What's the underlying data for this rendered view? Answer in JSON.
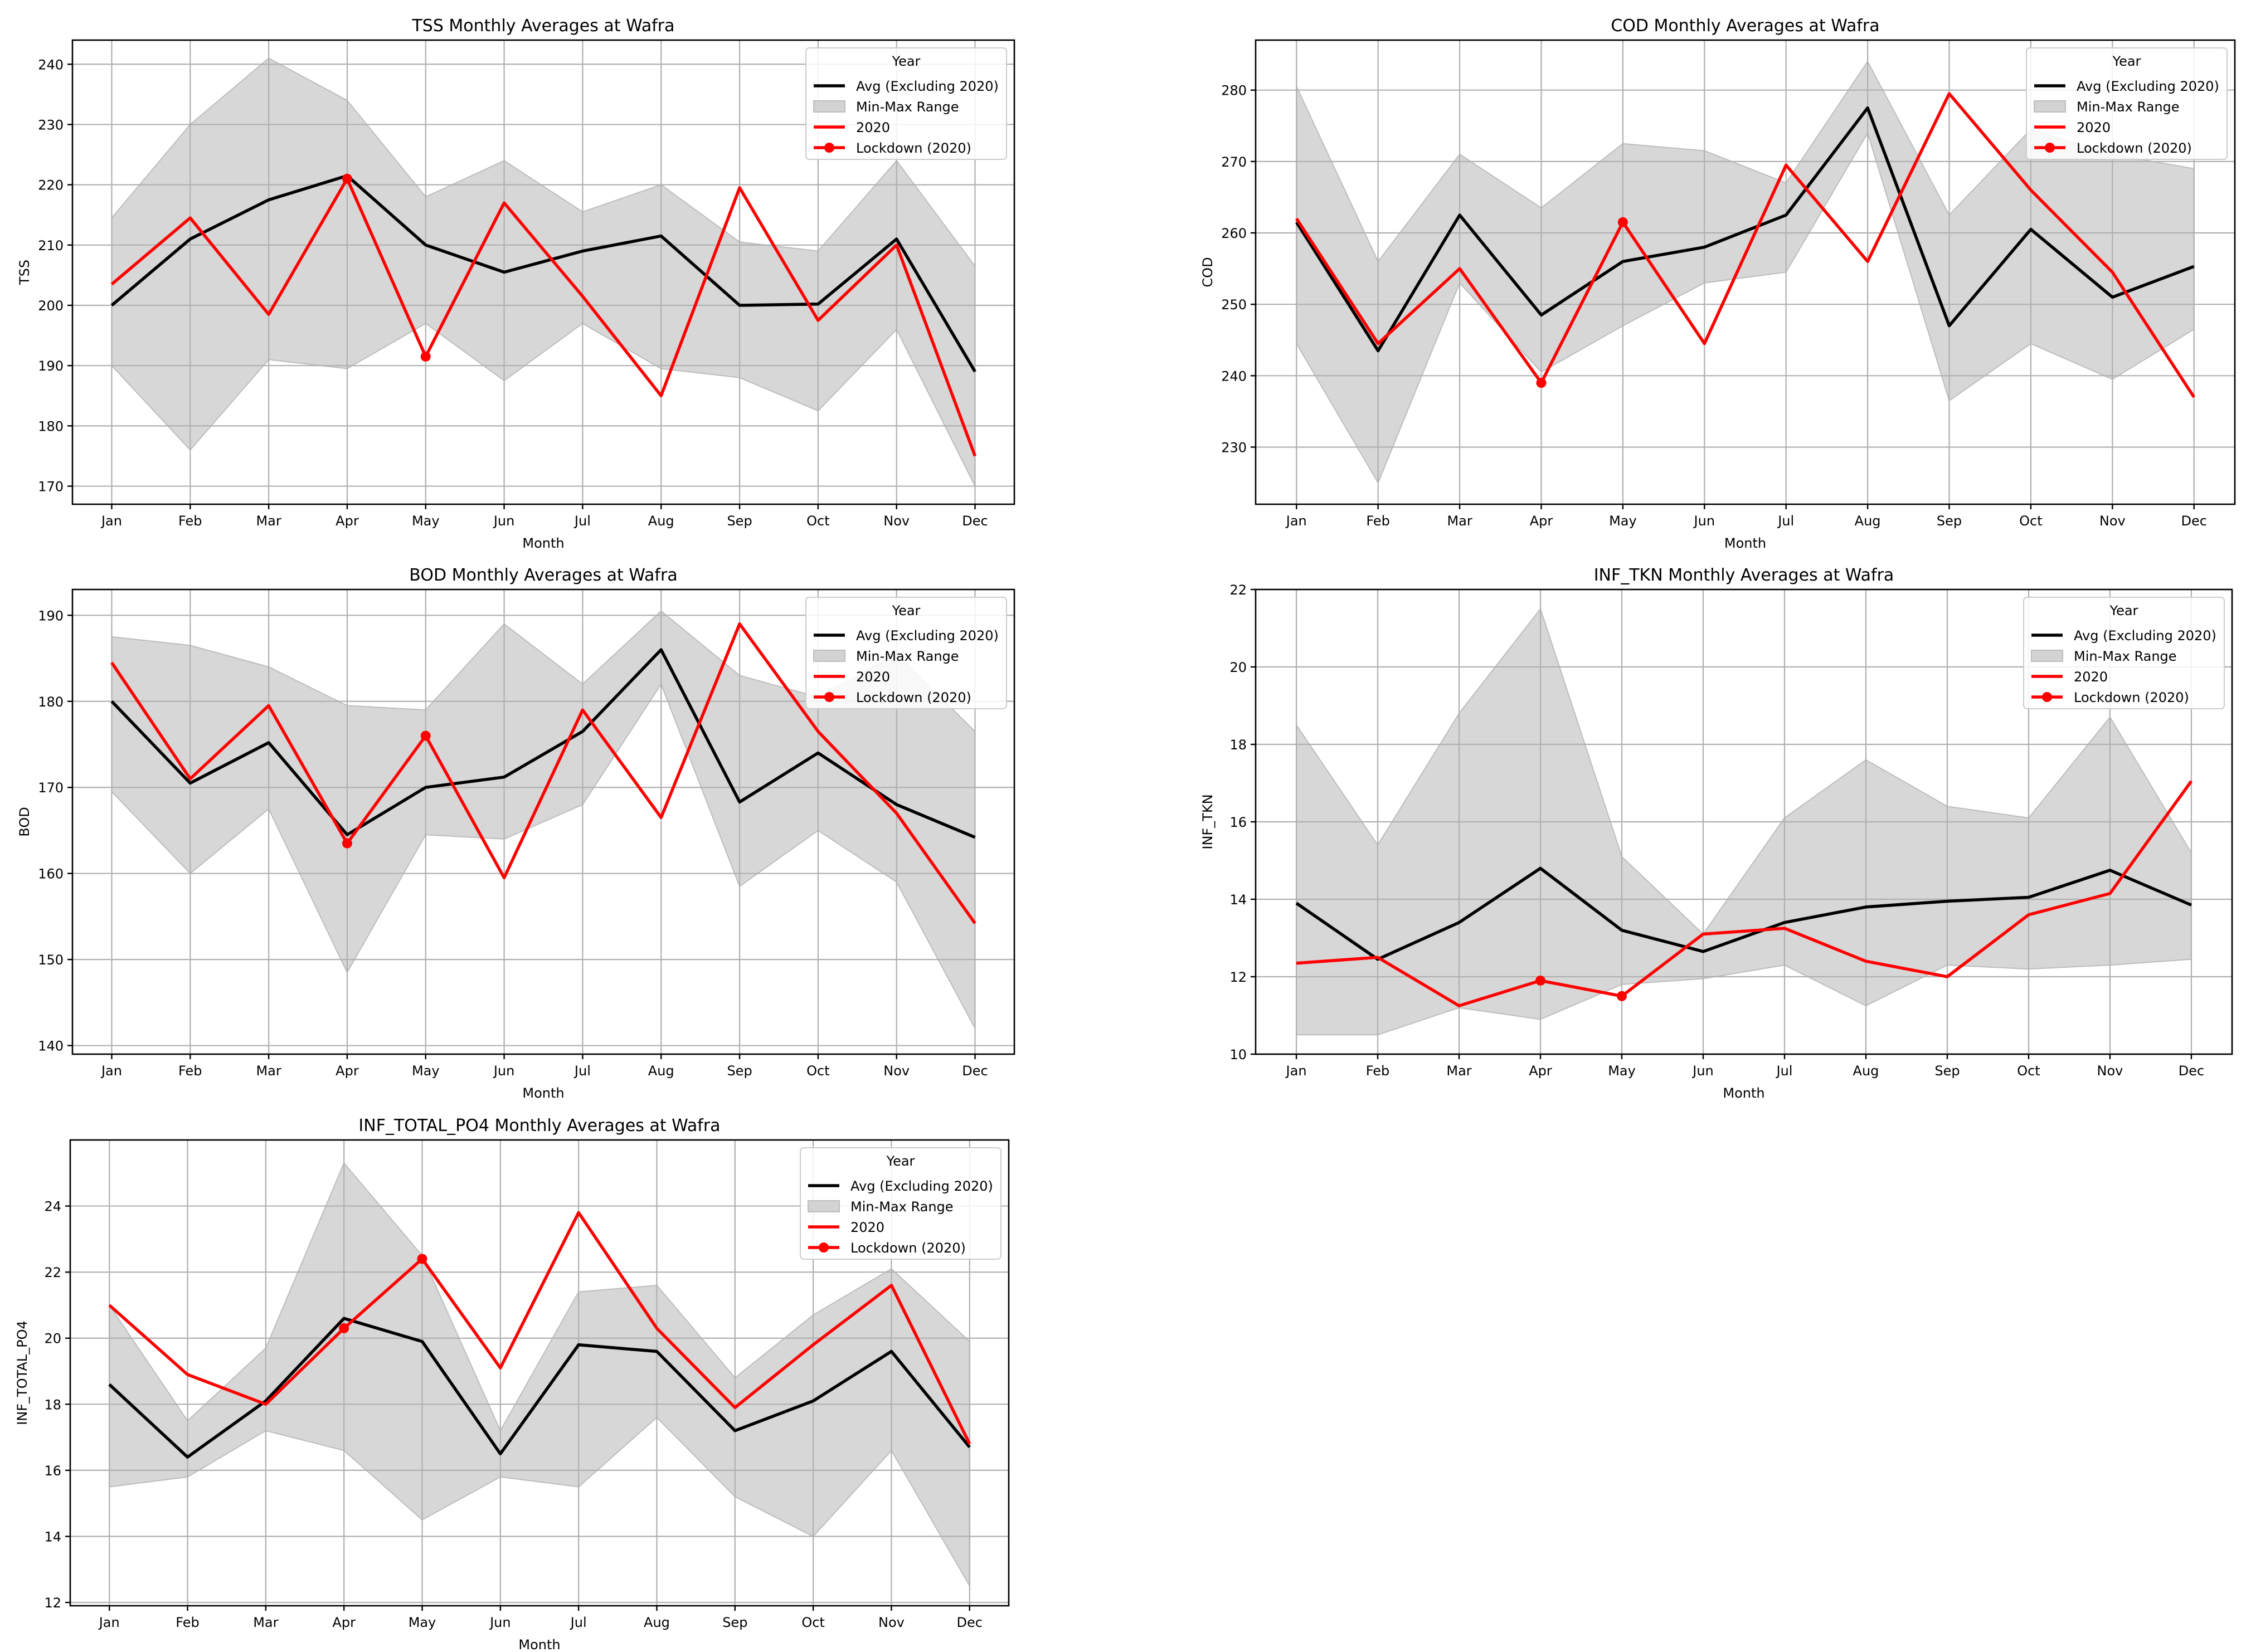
{
  "colors": {
    "avg": "#000000",
    "y2020": "#ff0000",
    "range": "#d3d3d3",
    "grid": "#b0b0b0"
  },
  "chart_data": [
    {
      "type": "line",
      "title": "TSS Monthly Averages at Wafra",
      "xlabel": "Month",
      "ylabel": "TSS",
      "categories": [
        "Jan",
        "Feb",
        "Mar",
        "Apr",
        "May",
        "Jun",
        "Jul",
        "Aug",
        "Sep",
        "Oct",
        "Nov",
        "Dec"
      ],
      "ylim": [
        167,
        244
      ],
      "yticks": [
        170,
        180,
        190,
        200,
        210,
        220,
        230,
        240
      ],
      "legend": {
        "title": "Year",
        "position": "top-right",
        "entries": [
          "Avg (Excluding 2020)",
          "Min-Max Range",
          "2020",
          "Lockdown (2020)"
        ]
      },
      "range": {
        "min": [
          190,
          176,
          191,
          189.5,
          197,
          187.5,
          197,
          189.5,
          188,
          182.5,
          196,
          170
        ],
        "max": [
          214.5,
          230,
          241,
          234,
          218,
          224,
          215.5,
          220,
          210.5,
          209,
          224,
          206.5
        ]
      },
      "avg": [
        200,
        211,
        217.5,
        221.5,
        210,
        205.5,
        209,
        211.5,
        200,
        200.2,
        211,
        189
      ],
      "series_2020": [
        203.5,
        214.5,
        198.5,
        221,
        191.5,
        217,
        201.5,
        185,
        219.5,
        197.5,
        210,
        175
      ],
      "lockdown": {
        "months": [
          "Apr",
          "May"
        ],
        "values": [
          221,
          191.5
        ]
      }
    },
    {
      "type": "line",
      "title": "COD Monthly Averages at Wafra",
      "xlabel": "Month",
      "ylabel": "COD",
      "categories": [
        "Jan",
        "Feb",
        "Mar",
        "Apr",
        "May",
        "Jun",
        "Jul",
        "Aug",
        "Sep",
        "Oct",
        "Nov",
        "Dec"
      ],
      "ylim": [
        222,
        287
      ],
      "yticks": [
        230,
        240,
        250,
        260,
        270,
        280
      ],
      "legend": {
        "title": "Year",
        "position": "top-right",
        "entries": [
          "Avg (Excluding 2020)",
          "Min-Max Range",
          "2020",
          "Lockdown (2020)"
        ]
      },
      "range": {
        "min": [
          244.5,
          225,
          253,
          240.5,
          247,
          253,
          254.5,
          274,
          236.5,
          244.5,
          239.5,
          246.5
        ],
        "max": [
          280.5,
          256,
          271,
          263.5,
          272.5,
          271.5,
          267,
          284,
          262.5,
          274.5,
          271,
          269
        ]
      },
      "avg": [
        261.5,
        243.5,
        262.5,
        248.5,
        256,
        258,
        262.5,
        277.5,
        247,
        260.5,
        251,
        255.3
      ],
      "series_2020": [
        262,
        244.5,
        255,
        239,
        261.5,
        244.5,
        269.5,
        256,
        279.5,
        266,
        254.5,
        237
      ],
      "lockdown": {
        "months": [
          "Apr",
          "May"
        ],
        "values": [
          239,
          261.5
        ]
      }
    },
    {
      "type": "line",
      "title": "BOD Monthly Averages at Wafra",
      "xlabel": "Month",
      "ylabel": "BOD",
      "categories": [
        "Jan",
        "Feb",
        "Mar",
        "Apr",
        "May",
        "Jun",
        "Jul",
        "Aug",
        "Sep",
        "Oct",
        "Nov",
        "Dec"
      ],
      "ylim": [
        139,
        193
      ],
      "yticks": [
        140,
        150,
        160,
        170,
        180,
        190
      ],
      "legend": {
        "title": "Year",
        "position": "top-right",
        "entries": [
          "Avg (Excluding 2020)",
          "Min-Max Range",
          "2020",
          "Lockdown (2020)"
        ]
      },
      "range": {
        "min": [
          169.5,
          160,
          167.5,
          148.5,
          164.5,
          164,
          168,
          182,
          158.5,
          165,
          159,
          142
        ],
        "max": [
          187.5,
          186.5,
          184,
          179.5,
          179,
          189,
          182,
          190.5,
          183,
          180.5,
          185.5,
          176.5
        ]
      },
      "avg": [
        180,
        170.5,
        175.2,
        164.5,
        170,
        171.2,
        176.5,
        186,
        168.3,
        174,
        168,
        164.2
      ],
      "series_2020": [
        184.5,
        171,
        179.5,
        163.5,
        176,
        159.5,
        179,
        166.5,
        189,
        176.5,
        167,
        154.2
      ],
      "lockdown": {
        "months": [
          "Apr",
          "May"
        ],
        "values": [
          163.5,
          176
        ]
      }
    },
    {
      "type": "line",
      "title": "INF_TKN Monthly Averages at Wafra",
      "xlabel": "Month",
      "ylabel": "INF_TKN",
      "categories": [
        "Jan",
        "Feb",
        "Mar",
        "Apr",
        "May",
        "Jun",
        "Jul",
        "Aug",
        "Sep",
        "Oct",
        "Nov",
        "Dec"
      ],
      "ylim": [
        10,
        22
      ],
      "yticks": [
        10,
        12,
        14,
        16,
        18,
        20,
        22
      ],
      "legend": {
        "title": "Year",
        "position": "top-right",
        "entries": [
          "Avg (Excluding 2020)",
          "Min-Max Range",
          "2020",
          "Lockdown (2020)"
        ]
      },
      "range": {
        "min": [
          10.5,
          10.5,
          11.2,
          10.9,
          11.8,
          11.95,
          12.3,
          11.25,
          12.3,
          12.2,
          12.3,
          12.45
        ],
        "max": [
          18.5,
          15.4,
          18.8,
          21.5,
          15.1,
          13.1,
          16.1,
          17.6,
          16.4,
          16.1,
          18.7,
          15.2
        ]
      },
      "avg": [
        13.9,
        12.45,
        13.4,
        14.8,
        13.2,
        12.65,
        13.4,
        13.8,
        13.95,
        14.05,
        14.75,
        13.85
      ],
      "series_2020": [
        12.35,
        12.5,
        11.25,
        11.9,
        11.5,
        13.1,
        13.25,
        12.4,
        12.0,
        13.6,
        14.15,
        17.05
      ],
      "lockdown": {
        "months": [
          "Apr",
          "May"
        ],
        "values": [
          11.9,
          11.5
        ]
      }
    },
    {
      "type": "line",
      "title": "INF_TOTAL_PO4 Monthly Averages at Wafra",
      "xlabel": "Month",
      "ylabel": "INF_TOTAL_PO4",
      "categories": [
        "Jan",
        "Feb",
        "Mar",
        "Apr",
        "May",
        "Jun",
        "Jul",
        "Aug",
        "Sep",
        "Oct",
        "Nov",
        "Dec"
      ],
      "ylim": [
        11.9,
        26.0
      ],
      "yticks": [
        12,
        14,
        16,
        18,
        20,
        22,
        24
      ],
      "legend": {
        "title": "Year",
        "position": "top-right",
        "entries": [
          "Avg (Excluding 2020)",
          "Min-Max Range",
          "2020",
          "Lockdown (2020)"
        ]
      },
      "range": {
        "min": [
          15.5,
          15.8,
          17.2,
          16.6,
          14.5,
          15.8,
          15.5,
          17.6,
          15.2,
          14.0,
          16.6,
          12.5
        ],
        "max": [
          21.0,
          17.5,
          19.7,
          25.3,
          22.5,
          17.2,
          21.4,
          21.6,
          18.8,
          20.7,
          22.1,
          19.9
        ]
      },
      "avg": [
        18.6,
        16.4,
        18.1,
        20.6,
        19.9,
        16.5,
        19.8,
        19.6,
        17.2,
        18.1,
        19.6,
        16.7
      ],
      "series_2020": [
        21.0,
        18.9,
        18.0,
        20.3,
        22.4,
        19.1,
        23.8,
        20.3,
        17.9,
        19.8,
        21.6,
        16.8
      ],
      "lockdown": {
        "months": [
          "Apr",
          "May"
        ],
        "values": [
          20.3,
          22.4
        ]
      }
    }
  ]
}
